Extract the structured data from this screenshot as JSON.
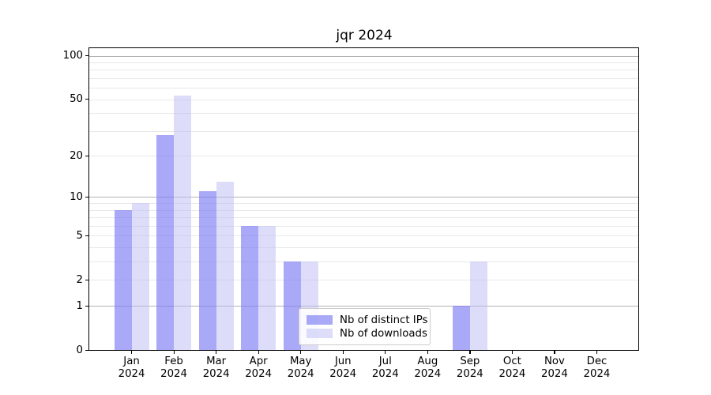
{
  "chart_data": {
    "type": "bar",
    "title": "jqr 2024",
    "categories": [
      "Jan 2024",
      "Feb 2024",
      "Mar 2024",
      "Apr 2024",
      "May 2024",
      "Jun 2024",
      "Jul 2024",
      "Aug 2024",
      "Sep 2024",
      "Oct 2024",
      "Nov 2024",
      "Dec 2024"
    ],
    "x_tick_months": [
      "Jan",
      "Feb",
      "Mar",
      "Apr",
      "May",
      "Jun",
      "Jul",
      "Aug",
      "Sep",
      "Oct",
      "Nov",
      "Dec"
    ],
    "x_tick_year": "2024",
    "series": [
      {
        "name": "Nb of distinct IPs",
        "color": "rgba(125,125,243,0.66)",
        "values": [
          8,
          28,
          11,
          6,
          3,
          0,
          0,
          0,
          1,
          0,
          0,
          0
        ]
      },
      {
        "name": "Nb of downloads",
        "color": "rgba(188,188,246,0.5)",
        "values": [
          9,
          53,
          13,
          6,
          3,
          0,
          0,
          0,
          3,
          0,
          0,
          0
        ]
      }
    ],
    "y_axis": {
      "scale": "log1p",
      "tick_labels": [
        "100",
        "50",
        "20",
        "10",
        "5",
        "2",
        "1",
        "0"
      ],
      "tick_values": [
        100,
        50,
        20,
        10,
        5,
        2,
        1,
        0
      ],
      "major_gridlines": [
        1,
        10,
        100
      ],
      "minor_gridlines": [
        2,
        3,
        4,
        5,
        6,
        7,
        8,
        9,
        20,
        30,
        40,
        50,
        60,
        70,
        80,
        90
      ],
      "ylim": [
        0,
        113
      ]
    },
    "xlabel": "",
    "ylabel": "",
    "grid": true,
    "legend": {
      "position": "lower-center",
      "entries": [
        "Nb of distinct IPs",
        "Nb of downloads"
      ]
    },
    "colors": {
      "minor_grid": "#e8e8e8",
      "major_grid": "#b2b2b2",
      "spine": "#000000",
      "background": "#ffffff"
    }
  }
}
